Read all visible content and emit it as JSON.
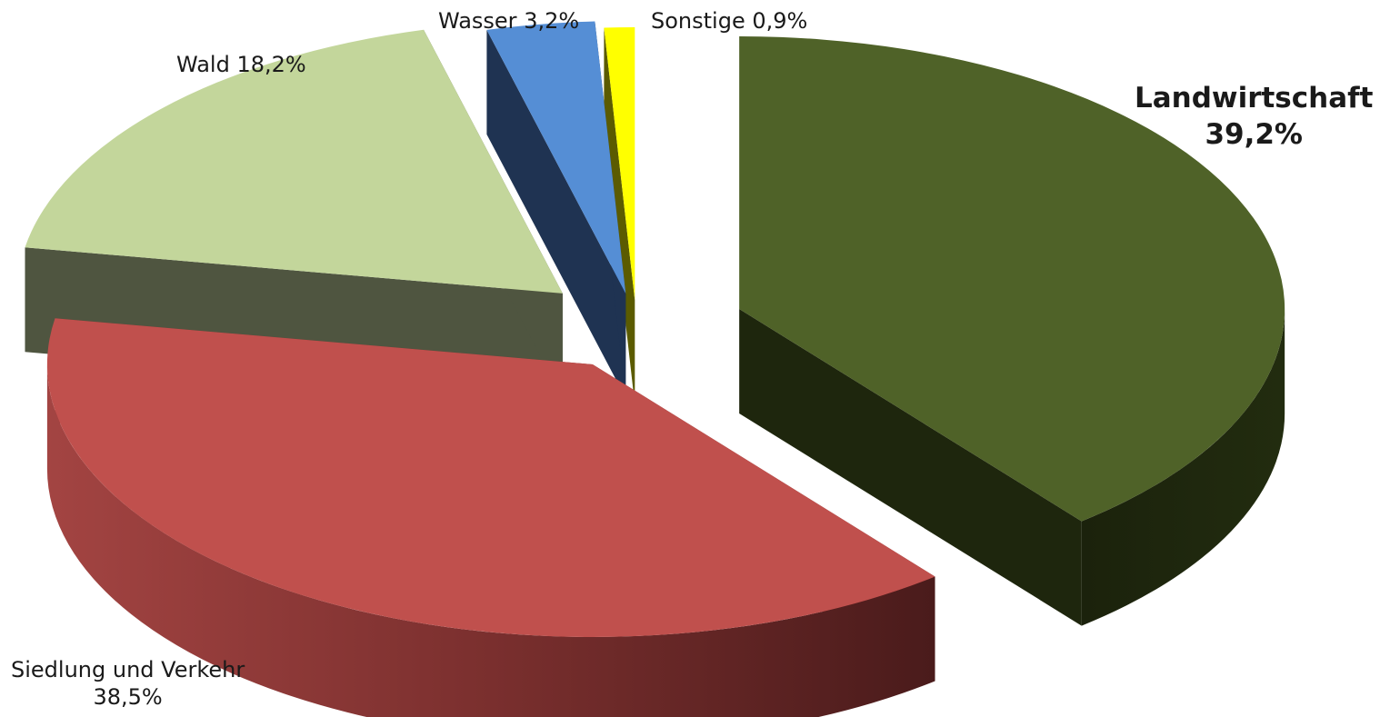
{
  "chart_data": {
    "type": "pie",
    "title": "",
    "slices": [
      {
        "name": "Landwirtschaft",
        "value": 39.2,
        "value_label": "39,2%",
        "color": "#4F6228",
        "side_color": "#1E260D"
      },
      {
        "name": "Siedlung und Verkehr",
        "value": 38.5,
        "value_label": "38,5%",
        "color": "#C0504D",
        "side_color": "#7A2E2C"
      },
      {
        "name": "Wald",
        "value": 18.2,
        "value_label": "18,2%",
        "color": "#C3D69B",
        "side_color": "#4F5540"
      },
      {
        "name": "Wasser",
        "value": 3.2,
        "value_label": "3,2%",
        "color": "#558ED5",
        "side_color": "#1F3352"
      },
      {
        "name": "Sonstige",
        "value": 0.9,
        "value_label": "0,9%",
        "color": "#FFFF00",
        "side_color": "#5B5B00"
      }
    ],
    "exploded": true,
    "three_d": true,
    "legend": "none"
  }
}
